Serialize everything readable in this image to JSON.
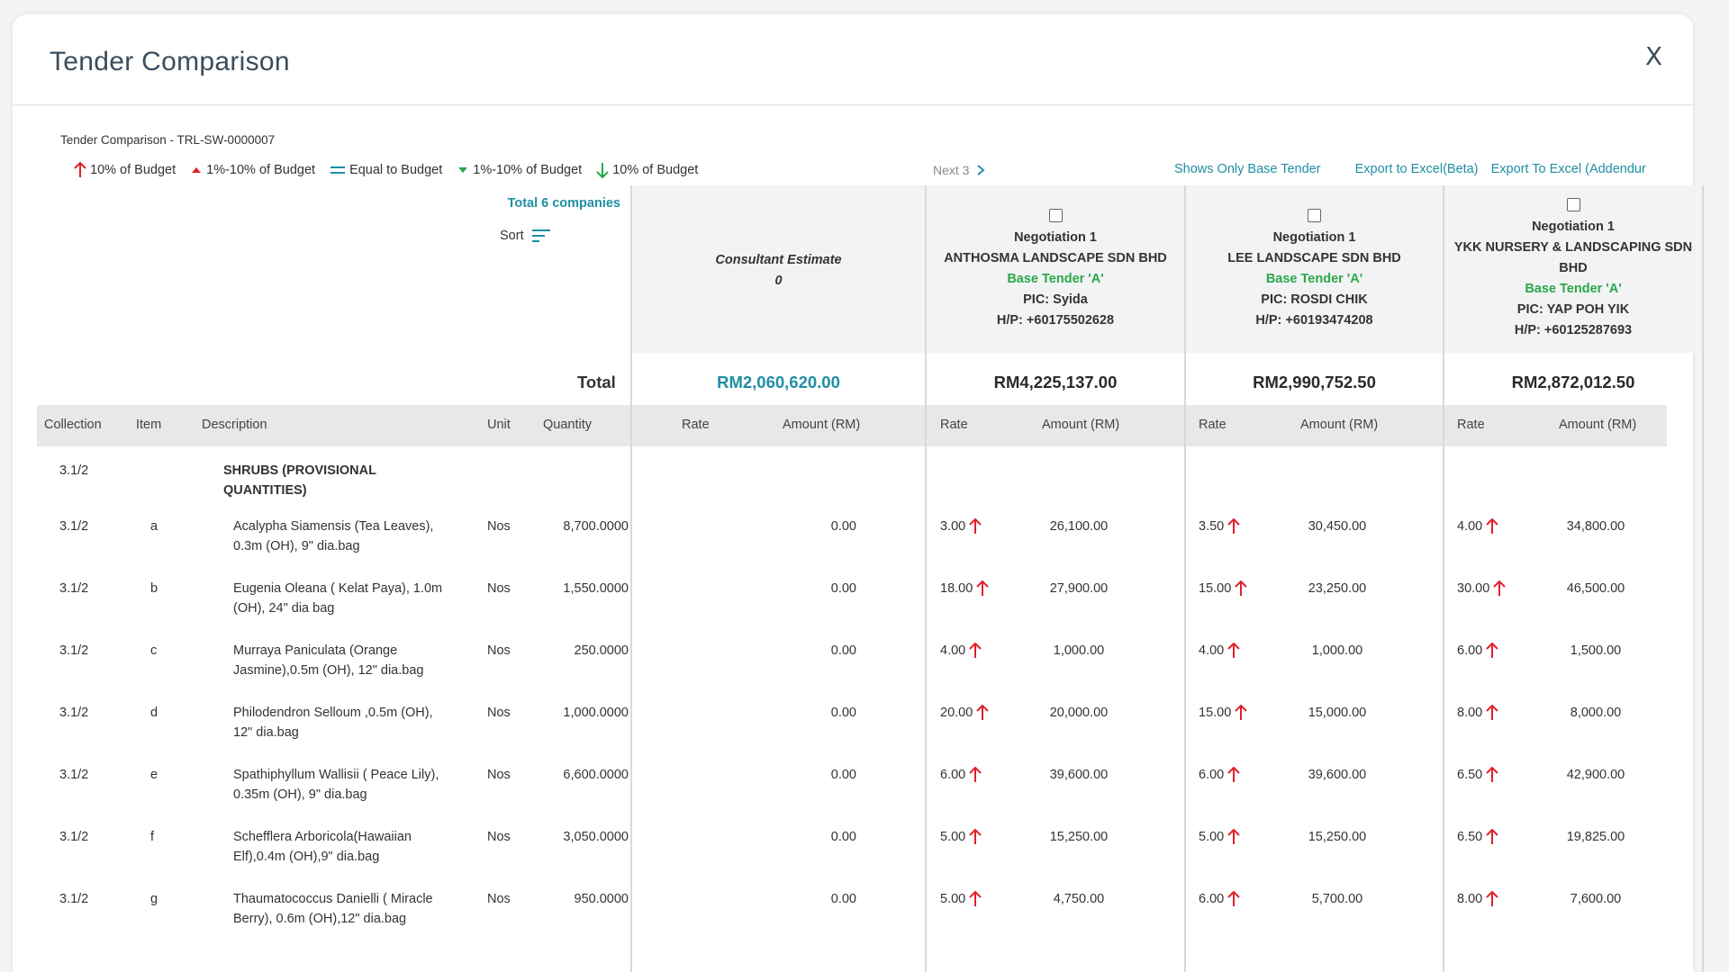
{
  "title": "Tender Comparison",
  "close_label": "X",
  "breadcrumb": "Tender Comparison  -  TRL-SW-0000007",
  "legend": [
    {
      "label": "10% of Budget",
      "icon": "arrow-up-red"
    },
    {
      "label": "1%-10% of Budget",
      "icon": "triangle-up-red"
    },
    {
      "label": "Equal to Budget",
      "icon": "equal-teal"
    },
    {
      "label": "1%-10% of Budget",
      "icon": "triangle-down-green"
    },
    {
      "label": "10% of Budget",
      "icon": "arrow-down-green"
    }
  ],
  "next_label": "Next 3",
  "links": {
    "base_tender": "Shows Only Base Tender",
    "export_beta": "Export to Excel(Beta)",
    "export_addendum": "Export To Excel (Addendur"
  },
  "total_companies": "Total 6 companies",
  "sort_label": "Sort",
  "consultant": {
    "title": "Consultant Estimate",
    "value": "0",
    "total": "RM2,060,620.00"
  },
  "vendors": [
    {
      "round": "Negotiation 1",
      "name": "ANTHOSMA LANDSCAPE SDN BHD",
      "tag": "Base Tender 'A'",
      "pic": "PIC: Syida",
      "hp": "H/P: +60175502628",
      "total": "RM4,225,137.00"
    },
    {
      "round": "Negotiation 1",
      "name": "LEE LANDSCAPE SDN BHD",
      "tag": "Base Tender 'A'",
      "pic": "PIC: ROSDI CHIK",
      "hp": "H/P: +60193474208",
      "total": "RM2,990,752.50"
    },
    {
      "round": "Negotiation 1",
      "name": "YKK NURSERY & LANDSCAPING SDN BHD",
      "tag": "Base Tender 'A'",
      "pic": "PIC: YAP POH YIK",
      "hp": "H/P: +60125287693",
      "total": "RM2,872,012.50"
    }
  ],
  "total_label": "Total",
  "columns": {
    "collection": "Collection",
    "item": "Item",
    "description": "Description",
    "unit": "Unit",
    "quantity": "Quantity",
    "rate": "Rate",
    "amount": "Amount (RM)"
  },
  "section": {
    "collection": "3.1/2",
    "description": "SHRUBS (PROVISIONAL QUANTITIES)"
  },
  "rows": [
    {
      "collection": "3.1/2",
      "item": "a",
      "description": "Acalypha Siamensis (Tea Leaves), 0.3m (OH), 9\" dia.bag",
      "unit": "Nos",
      "quantity": "8,700.0000",
      "cons_amount": "0.00",
      "v": [
        {
          "rate": "3.00",
          "amount": "26,100.00"
        },
        {
          "rate": "3.50",
          "amount": "30,450.00"
        },
        {
          "rate": "4.00",
          "amount": "34,800.00"
        }
      ]
    },
    {
      "collection": "3.1/2",
      "item": "b",
      "description": "Eugenia Oleana ( Kelat Paya), 1.0m (OH), 24\" dia bag",
      "unit": "Nos",
      "quantity": "1,550.0000",
      "cons_amount": "0.00",
      "v": [
        {
          "rate": "18.00",
          "amount": "27,900.00"
        },
        {
          "rate": "15.00",
          "amount": "23,250.00"
        },
        {
          "rate": "30.00",
          "amount": "46,500.00"
        }
      ]
    },
    {
      "collection": "3.1/2",
      "item": "c",
      "description": "Murraya Paniculata (Orange Jasmine),0.5m (OH), 12\" dia.bag",
      "unit": "Nos",
      "quantity": "250.0000",
      "cons_amount": "0.00",
      "v": [
        {
          "rate": "4.00",
          "amount": "1,000.00"
        },
        {
          "rate": "4.00",
          "amount": "1,000.00"
        },
        {
          "rate": "6.00",
          "amount": "1,500.00"
        }
      ]
    },
    {
      "collection": "3.1/2",
      "item": "d",
      "description": "Philodendron Selloum ,0.5m (OH), 12\" dia.bag",
      "unit": "Nos",
      "quantity": "1,000.0000",
      "cons_amount": "0.00",
      "v": [
        {
          "rate": "20.00",
          "amount": "20,000.00"
        },
        {
          "rate": "15.00",
          "amount": "15,000.00"
        },
        {
          "rate": "8.00",
          "amount": "8,000.00"
        }
      ]
    },
    {
      "collection": "3.1/2",
      "item": "e",
      "description": "Spathiphyllum Wallisii ( Peace Lily), 0.35m (OH), 9\" dia.bag",
      "unit": "Nos",
      "quantity": "6,600.0000",
      "cons_amount": "0.00",
      "v": [
        {
          "rate": "6.00",
          "amount": "39,600.00"
        },
        {
          "rate": "6.00",
          "amount": "39,600.00"
        },
        {
          "rate": "6.50",
          "amount": "42,900.00"
        }
      ]
    },
    {
      "collection": "3.1/2",
      "item": "f",
      "description": "Schefflera Arboricola(Hawaiian Elf),0.4m (OH),9\" dia.bag",
      "unit": "Nos",
      "quantity": "3,050.0000",
      "cons_amount": "0.00",
      "v": [
        {
          "rate": "5.00",
          "amount": "15,250.00"
        },
        {
          "rate": "5.00",
          "amount": "15,250.00"
        },
        {
          "rate": "6.50",
          "amount": "19,825.00"
        }
      ]
    },
    {
      "collection": "3.1/2",
      "item": "g",
      "description": "Thaumatococcus Danielli ( Miracle Berry), 0.6m (OH),12\" dia.bag",
      "unit": "Nos",
      "quantity": "950.0000",
      "cons_amount": "0.00",
      "v": [
        {
          "rate": "5.00",
          "amount": "4,750.00"
        },
        {
          "rate": "6.00",
          "amount": "5,700.00"
        },
        {
          "rate": "8.00",
          "amount": "7,600.00"
        }
      ]
    }
  ],
  "colors": {
    "teal": "#1f8fa3",
    "red": "#e0202a",
    "green": "#2aa84a"
  }
}
